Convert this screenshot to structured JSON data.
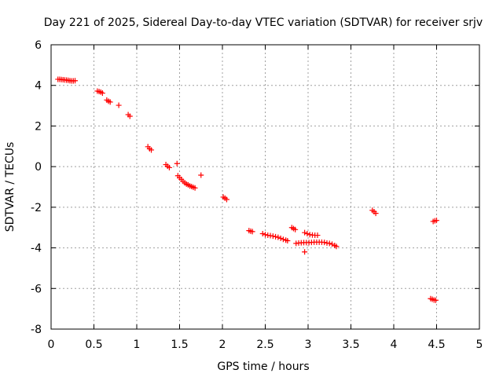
{
  "chart_data": {
    "type": "scatter",
    "title": "Day 221 of 2025, Sidereal Day-to-day VTEC variation (SDTVAR) for receiver srjv",
    "xlabel": "GPS time / hours",
    "ylabel": "SDTVAR / TECUs",
    "xlim": [
      0,
      5
    ],
    "ylim": [
      -8,
      6
    ],
    "xticks": [
      0,
      0.5,
      1,
      1.5,
      2,
      2.5,
      3,
      3.5,
      4,
      4.5,
      5
    ],
    "xtick_labels": [
      "0",
      "0.5",
      "1",
      "1.5",
      "2",
      "2.5",
      "3",
      "3.5",
      "4",
      "4.5",
      "5"
    ],
    "yticks": [
      -8,
      -6,
      -4,
      -2,
      0,
      2,
      4,
      6
    ],
    "ytick_labels": [
      "-8",
      "-6",
      "-4",
      "-2",
      "0",
      "2",
      "4",
      "6"
    ],
    "grid": true,
    "marker": "+",
    "marker_color": "#ff0000",
    "series": [
      {
        "name": "SDTVAR",
        "points": [
          [
            0.08,
            4.3
          ],
          [
            0.1,
            4.3
          ],
          [
            0.12,
            4.29
          ],
          [
            0.14,
            4.28
          ],
          [
            0.16,
            4.27
          ],
          [
            0.18,
            4.26
          ],
          [
            0.2,
            4.25
          ],
          [
            0.22,
            4.23
          ],
          [
            0.24,
            4.22
          ],
          [
            0.26,
            4.22
          ],
          [
            0.28,
            4.23
          ],
          [
            0.54,
            3.72
          ],
          [
            0.56,
            3.7
          ],
          [
            0.58,
            3.67
          ],
          [
            0.6,
            3.62
          ],
          [
            0.65,
            3.28
          ],
          [
            0.67,
            3.22
          ],
          [
            0.69,
            3.18
          ],
          [
            0.79,
            3.02
          ],
          [
            0.9,
            2.56
          ],
          [
            0.92,
            2.48
          ],
          [
            1.13,
            0.98
          ],
          [
            1.15,
            0.88
          ],
          [
            1.17,
            0.82
          ],
          [
            1.34,
            0.1
          ],
          [
            1.36,
            0.02
          ],
          [
            1.38,
            -0.05
          ],
          [
            1.47,
            0.15
          ],
          [
            1.48,
            -0.45
          ],
          [
            1.5,
            -0.55
          ],
          [
            1.52,
            -0.63
          ],
          [
            1.54,
            -0.72
          ],
          [
            1.56,
            -0.8
          ],
          [
            1.58,
            -0.86
          ],
          [
            1.6,
            -0.9
          ],
          [
            1.62,
            -0.95
          ],
          [
            1.64,
            -0.98
          ],
          [
            1.66,
            -1.02
          ],
          [
            1.68,
            -1.05
          ],
          [
            1.75,
            -0.42
          ],
          [
            2.01,
            -1.5
          ],
          [
            2.03,
            -1.55
          ],
          [
            2.05,
            -1.62
          ],
          [
            2.31,
            -3.15
          ],
          [
            2.33,
            -3.18
          ],
          [
            2.35,
            -3.2
          ],
          [
            2.47,
            -3.3
          ],
          [
            2.5,
            -3.35
          ],
          [
            2.53,
            -3.38
          ],
          [
            2.56,
            -3.4
          ],
          [
            2.59,
            -3.42
          ],
          [
            2.62,
            -3.45
          ],
          [
            2.65,
            -3.48
          ],
          [
            2.68,
            -3.53
          ],
          [
            2.71,
            -3.58
          ],
          [
            2.74,
            -3.62
          ],
          [
            2.76,
            -3.65
          ],
          [
            2.81,
            -3.0
          ],
          [
            2.83,
            -3.05
          ],
          [
            2.85,
            -3.1
          ],
          [
            2.86,
            -3.78
          ],
          [
            2.89,
            -3.76
          ],
          [
            2.92,
            -3.75
          ],
          [
            2.95,
            -3.74
          ],
          [
            2.98,
            -3.74
          ],
          [
            3.01,
            -3.74
          ],
          [
            3.04,
            -3.73
          ],
          [
            3.07,
            -3.72
          ],
          [
            3.1,
            -3.72
          ],
          [
            3.13,
            -3.72
          ],
          [
            3.16,
            -3.72
          ],
          [
            3.19,
            -3.73
          ],
          [
            3.22,
            -3.76
          ],
          [
            3.25,
            -3.78
          ],
          [
            3.28,
            -3.82
          ],
          [
            3.31,
            -3.88
          ],
          [
            3.33,
            -3.93
          ],
          [
            2.96,
            -3.25
          ],
          [
            2.99,
            -3.3
          ],
          [
            3.02,
            -3.35
          ],
          [
            3.05,
            -3.37
          ],
          [
            3.08,
            -3.38
          ],
          [
            3.11,
            -3.38
          ],
          [
            2.96,
            -4.2
          ],
          [
            3.75,
            -2.15
          ],
          [
            3.77,
            -2.22
          ],
          [
            3.79,
            -2.3
          ],
          [
            4.43,
            -6.5
          ],
          [
            4.45,
            -6.53
          ],
          [
            4.47,
            -6.57
          ],
          [
            4.49,
            -6.58
          ],
          [
            4.46,
            -2.7
          ],
          [
            4.48,
            -2.67
          ],
          [
            4.5,
            -2.65
          ]
        ]
      }
    ]
  }
}
